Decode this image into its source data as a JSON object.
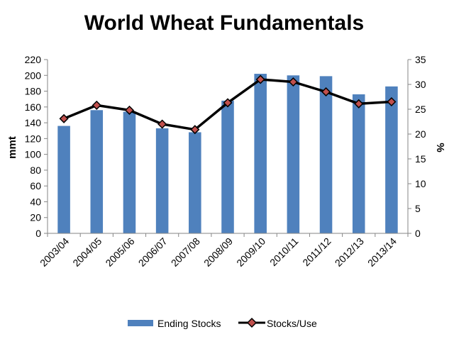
{
  "chart_data": {
    "type": "bar",
    "title": "World Wheat Fundamentals",
    "categories": [
      "2003/04",
      "2004/05",
      "2005/06",
      "2006/07",
      "2007/08",
      "2008/09",
      "2009/10",
      "2010/11",
      "2011/12",
      "2012/13",
      "2013/14"
    ],
    "series": [
      {
        "name": "Ending Stocks",
        "type": "bar",
        "axis": "left",
        "values": [
          136,
          156,
          154,
          133,
          128,
          168,
          202,
          200,
          199,
          176,
          186
        ]
      },
      {
        "name": "Stocks/Use",
        "type": "line",
        "axis": "right",
        "values": [
          23.1,
          25.8,
          24.8,
          22.0,
          20.9,
          26.3,
          31.0,
          30.5,
          28.5,
          26.1,
          26.5
        ]
      }
    ],
    "ylabel": "mmt",
    "y2label": "%",
    "ylim": [
      0,
      220
    ],
    "y2lim": [
      0,
      35
    ],
    "yticks": [
      "0",
      "20",
      "40",
      "60",
      "80",
      "100",
      "120",
      "140",
      "160",
      "180",
      "200",
      "220"
    ],
    "y2ticks": [
      "0",
      "5",
      "10",
      "15",
      "20",
      "25",
      "30",
      "35"
    ],
    "grid": false,
    "legend": "bottom",
    "colors": {
      "bar": "#4f81bd",
      "line": "#000000",
      "marker_fill": "#c0504d",
      "axis": "#868686"
    }
  }
}
